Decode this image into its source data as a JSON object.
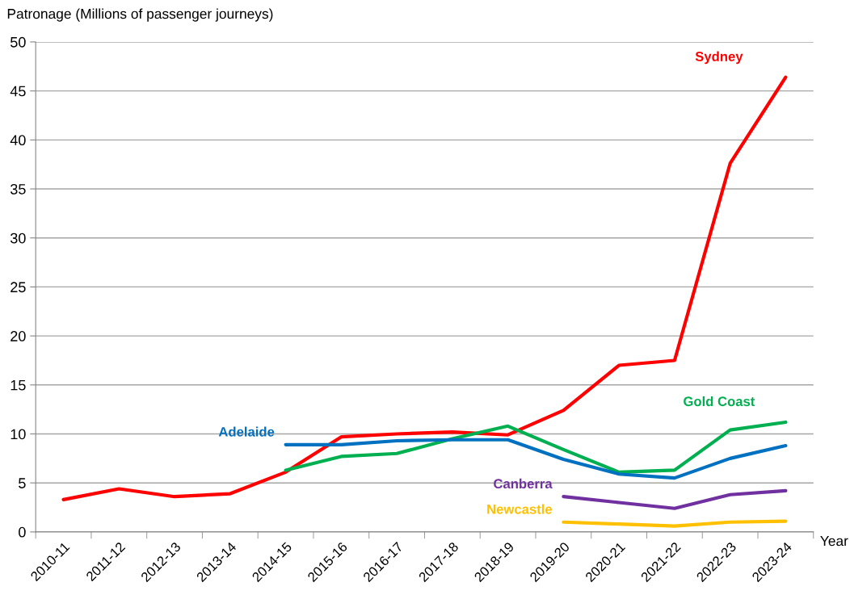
{
  "chart_data": {
    "type": "line",
    "ylabel": "Patronage (Millions of passenger journeys)",
    "xlabel": "Year",
    "categories": [
      "2010-11",
      "2011-12",
      "2012-13",
      "2013-14",
      "2014-15",
      "2015-16",
      "2016-17",
      "2017-18",
      "2018-19",
      "2019-20",
      "2020-21",
      "2021-22",
      "2022-23",
      "2023-24"
    ],
    "series": [
      {
        "name": "Sydney",
        "color": "#ff0000",
        "values": [
          3.3,
          4.4,
          3.6,
          3.9,
          6.1,
          9.7,
          10.0,
          10.2,
          9.9,
          12.4,
          17.0,
          17.5,
          37.6,
          46.4
        ]
      },
      {
        "name": "Gold Coast",
        "color": "#00b050",
        "values": [
          null,
          null,
          null,
          null,
          6.3,
          7.7,
          8.0,
          9.5,
          10.8,
          8.4,
          6.1,
          6.3,
          10.4,
          11.2
        ]
      },
      {
        "name": "Adelaide",
        "color": "#0070c0",
        "values": [
          null,
          null,
          null,
          null,
          8.9,
          8.9,
          9.3,
          9.4,
          9.4,
          7.4,
          5.9,
          5.5,
          7.5,
          8.8
        ]
      },
      {
        "name": "Canberra",
        "color": "#7030a0",
        "values": [
          null,
          null,
          null,
          null,
          null,
          null,
          null,
          null,
          null,
          3.6,
          3.0,
          2.4,
          3.8,
          4.2
        ]
      },
      {
        "name": "Newcastle",
        "color": "#ffc000",
        "values": [
          null,
          null,
          null,
          null,
          null,
          null,
          null,
          null,
          null,
          1.0,
          0.8,
          0.6,
          1.0,
          1.1
        ]
      }
    ],
    "ylim": [
      0,
      50
    ],
    "yticks": [
      0,
      5,
      10,
      15,
      20,
      25,
      30,
      35,
      40,
      45,
      50
    ],
    "grid": "y",
    "legend": false,
    "marker": "none",
    "line_style": "solid"
  }
}
